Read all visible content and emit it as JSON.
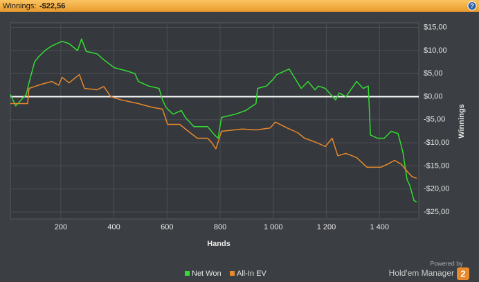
{
  "header": {
    "label": "Winnings:",
    "value": "-$22,56",
    "help": "?"
  },
  "chart_data": {
    "type": "line",
    "xlabel": "Hands",
    "ylabel": "Winnings",
    "xlim": [
      10,
      1548
    ],
    "ylim": [
      -26.5,
      16
    ],
    "xticks": [
      200,
      400,
      600,
      800,
      {
        "value": 1000,
        "label": "1 000"
      },
      {
        "value": 1200,
        "label": "1 200"
      },
      {
        "value": 1400,
        "label": "1 400"
      }
    ],
    "yticks": [
      {
        "value": 15,
        "label": "$15,00"
      },
      {
        "value": 10,
        "label": "$10,00"
      },
      {
        "value": 5,
        "label": "$5,00"
      },
      {
        "value": 0,
        "label": "$0,00"
      },
      {
        "value": -5,
        "label": "-$5,00"
      },
      {
        "value": -10,
        "label": "-$10,00"
      },
      {
        "value": -15,
        "label": "-$15,00"
      },
      {
        "value": -20,
        "label": "-$20,00"
      },
      {
        "value": -25,
        "label": "-$25,00"
      }
    ],
    "grid": true,
    "reference_line": 0,
    "series": [
      {
        "name": "Net Won",
        "color": "#33dd33",
        "x": [
          10,
          30,
          70,
          80,
          101,
          114,
          140,
          166,
          205,
          231,
          263,
          278,
          296,
          336,
          362,
          401,
          453,
          479,
          492,
          531,
          570,
          583,
          596,
          622,
          654,
          669,
          701,
          753,
          779,
          792,
          805,
          857,
          896,
          935,
          941,
          974,
          1000,
          1014,
          1060,
          1105,
          1131,
          1157,
          1170,
          1196,
          1235,
          1248,
          1274,
          1314,
          1339,
          1358,
          1366,
          1392,
          1418,
          1444,
          1470,
          1488,
          1504,
          1514,
          1530,
          1540
        ],
        "values": [
          0.5,
          -2,
          0.5,
          3,
          7.5,
          8.5,
          10,
          11,
          12,
          11.5,
          10,
          12.5,
          9.8,
          9.3,
          8,
          6.3,
          5.5,
          5,
          3.3,
          2.3,
          1.8,
          -0.7,
          -2.3,
          -3.8,
          -3,
          -4.5,
          -6.5,
          -6.5,
          -8.3,
          -9,
          -4.5,
          -3.8,
          -3,
          -1.5,
          1.8,
          2.3,
          3.8,
          4.8,
          6,
          1.8,
          3.3,
          1.5,
          2.3,
          1.8,
          -0.7,
          0.8,
          0,
          3.3,
          1.8,
          2.3,
          -8.3,
          -9,
          -9,
          -7.5,
          -8,
          -12,
          -18,
          -19.2,
          -22.5,
          -22.8
        ]
      },
      {
        "name": "All-In EV",
        "color": "#e8892c",
        "x": [
          10,
          75,
          80,
          127,
          166,
          192,
          205,
          231,
          270,
          289,
          336,
          362,
          388,
          427,
          492,
          544,
          583,
          602,
          648,
          680,
          714,
          753,
          766,
          784,
          805,
          883,
          935,
          988,
          1008,
          1053,
          1092,
          1118,
          1157,
          1196,
          1222,
          1243,
          1274,
          1314,
          1353,
          1405,
          1431,
          1457,
          1483,
          1504,
          1522,
          1540
        ],
        "values": [
          -1.5,
          -1.5,
          1.8,
          2.7,
          3.3,
          2.5,
          4.2,
          3,
          4.8,
          1.8,
          1.5,
          2.2,
          0,
          -0.7,
          -1.5,
          -2.3,
          -2.7,
          -6,
          -6,
          -7.5,
          -9,
          -9,
          -9.8,
          -11.3,
          -7.5,
          -7,
          -7.2,
          -6.8,
          -5.5,
          -6.8,
          -7.8,
          -9,
          -9.8,
          -10.8,
          -9,
          -12.8,
          -12.3,
          -13.2,
          -15.3,
          -15.3,
          -14.6,
          -13.8,
          -14.7,
          -16.2,
          -17.3,
          -17.7
        ]
      }
    ]
  },
  "footer": {
    "powered": "Powered by",
    "brand": "Hold'em Manager",
    "badge": "2"
  }
}
